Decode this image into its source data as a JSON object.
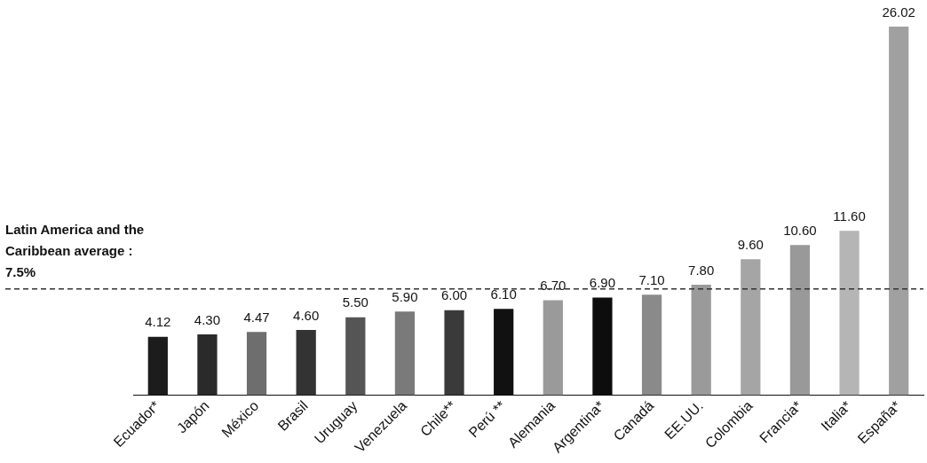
{
  "chart_data": {
    "type": "bar",
    "categories": [
      "Ecuador*",
      "Japón",
      "México",
      "Brasil",
      "Uruguay",
      "Venezuela",
      "Chile**",
      "Perú **",
      "Alemania",
      "Argentina*",
      "Canadá",
      "EE.UU.",
      "Colombia",
      "Francia*",
      "Italia*",
      "España*"
    ],
    "values": [
      4.12,
      4.3,
      4.47,
      4.6,
      5.5,
      5.9,
      6.0,
      6.1,
      6.7,
      6.9,
      7.1,
      7.8,
      9.6,
      10.6,
      11.6,
      26.02
    ],
    "colors": [
      "#1c1c1c",
      "#2a2a2a",
      "#6e6e6e",
      "#333333",
      "#555555",
      "#7a7a7a",
      "#3a3a3a",
      "#111111",
      "#9a9a9a",
      "#0d0d0d",
      "#8a8a8a",
      "#9a9a9a",
      "#a5a5a5",
      "#999999",
      "#b5b5b5",
      "#a0a0a0"
    ],
    "value_labels": [
      "4.12",
      "4.30",
      "4.47",
      "4.60",
      "5.50",
      "5.90",
      "6.00",
      "6.10",
      "6.70",
      "6.90",
      "7.10",
      "7.80",
      "9.60",
      "10.60",
      "11.60",
      "26.02"
    ],
    "grid": false,
    "legend": false,
    "tick_labels": "x",
    "ref_lines": [
      {
        "axis": "y",
        "value": 7.5,
        "label": "Latin America and the Caribbean average : 7.5%",
        "color": "#333333",
        "line_style": "dashed"
      }
    ]
  }
}
